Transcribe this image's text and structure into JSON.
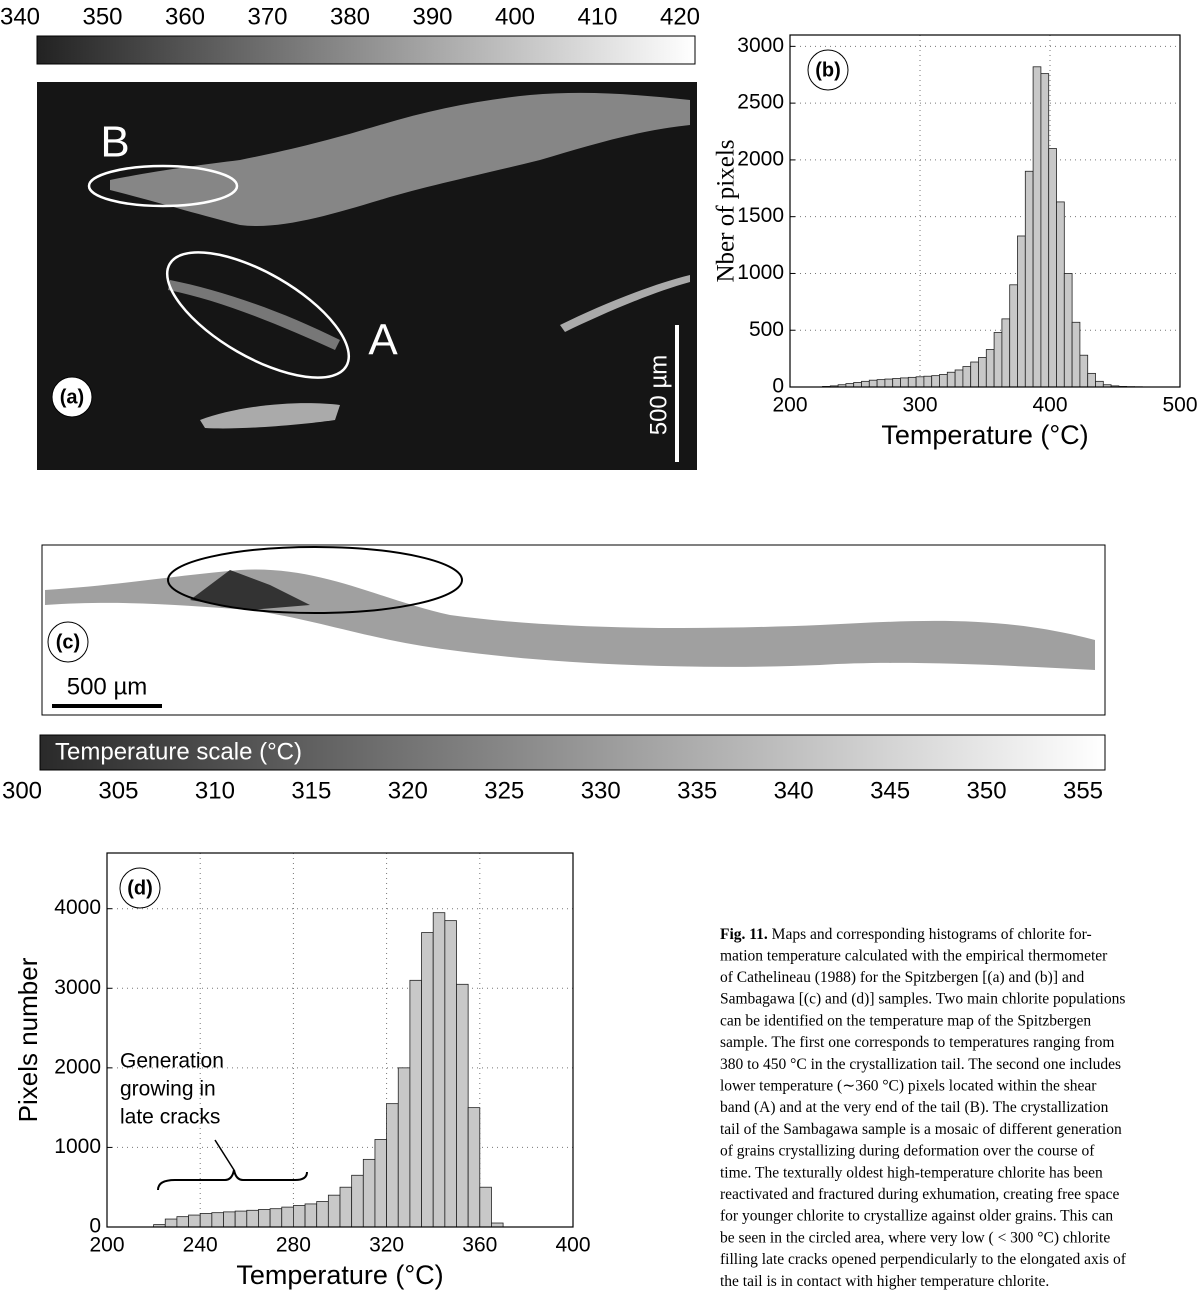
{
  "panel_a": {
    "colorbar": {
      "lim": [
        340,
        420
      ],
      "ticks": [
        340,
        350,
        360,
        370,
        380,
        390,
        400,
        410,
        420
      ]
    },
    "label": "(a)",
    "regions": [
      "B",
      "A"
    ],
    "scale_bar": "500 µm"
  },
  "chart_data": [
    {
      "type": "histogram",
      "panel_label": "(b)",
      "xlabel": "Temperature (°C)",
      "ylabel": "Nber of pixels",
      "bins": [
        225,
        231,
        237,
        243,
        249,
        255,
        261,
        267,
        273,
        279,
        285,
        291,
        297,
        303,
        309,
        315,
        321,
        327,
        333,
        339,
        345,
        351,
        357,
        363,
        369,
        375,
        381,
        387,
        393,
        399,
        405,
        411,
        417,
        423,
        429,
        435,
        441,
        447,
        453,
        459,
        465,
        471,
        477
      ],
      "values": [
        5,
        10,
        20,
        30,
        40,
        50,
        60,
        65,
        70,
        75,
        80,
        85,
        90,
        95,
        100,
        110,
        130,
        150,
        180,
        220,
        260,
        330,
        480,
        600,
        900,
        1330,
        1900,
        2820,
        2760,
        2100,
        1630,
        1000,
        570,
        280,
        120,
        50,
        20,
        10,
        5,
        3,
        2,
        1
      ],
      "color": "#c8c8c8",
      "xlim": [
        200,
        500
      ],
      "xticks": [
        200,
        300,
        400,
        500
      ],
      "ylim": [
        0,
        3100
      ],
      "yticks": [
        0,
        500,
        1000,
        1500,
        2000,
        2500,
        3000
      ],
      "grid": true
    },
    {
      "type": "histogram",
      "panel_label": "(d)",
      "xlabel": "Temperature (°C)",
      "ylabel": "Pixels number",
      "annotation": [
        "Generation",
        "growing in",
        "late cracks"
      ],
      "bins": [
        220,
        225,
        230,
        235,
        240,
        245,
        250,
        255,
        260,
        265,
        270,
        275,
        280,
        285,
        290,
        295,
        300,
        305,
        310,
        315,
        320,
        325,
        330,
        335,
        340,
        345,
        350,
        355,
        360,
        365,
        370
      ],
      "values": [
        30,
        100,
        130,
        150,
        170,
        180,
        190,
        200,
        210,
        220,
        230,
        250,
        270,
        290,
        320,
        400,
        500,
        650,
        850,
        1100,
        1550,
        2000,
        3100,
        3700,
        3950,
        3850,
        3050,
        1500,
        500,
        50
      ],
      "color": "#c8c8c8",
      "xlim": [
        200,
        400
      ],
      "xticks": [
        200,
        240,
        280,
        320,
        360,
        400
      ],
      "ylim": [
        0,
        4700
      ],
      "yticks": [
        0,
        1000,
        2000,
        3000,
        4000
      ],
      "grid": true
    }
  ],
  "panel_c": {
    "label": "(c)",
    "scale_bar": "500 µm",
    "colorbar": {
      "title": "Temperature scale (°C)",
      "lim": [
        300,
        355
      ],
      "ticks": [
        300,
        305,
        310,
        315,
        320,
        325,
        330,
        335,
        340,
        345,
        350,
        355
      ]
    }
  },
  "caption": {
    "label": "Fig. 11.",
    "lines": [
      " Maps and corresponding histograms of chlorite for-",
      "mation temperature calculated with the empirical thermometer",
      "of Cathelineau (1988) for the Spitzbergen [(a) and (b)] and",
      "Sambagawa [(c) and (d)] samples. Two main chlorite populations",
      "can be identified on the temperature map of the Spitzbergen",
      "sample. The first one corresponds to temperatures ranging from",
      "380 to 450 °C in the crystallization tail. The second one includes",
      "lower temperature (∼360 °C) pixels located within the shear",
      "band (A) and at the very end of the tail (B). The crystallization",
      "tail of the Sambagawa sample is a mosaic of different generation",
      "of grains crystallizing during deformation over the course of",
      "time. The texturally oldest high-temperature chlorite has been",
      "reactivated and fractured during exhumation, creating free space",
      "for younger chlorite to crystallize against older grains. This can",
      "be seen in the circled area, where very low ( < 300 °C) chlorite",
      "filling late cracks opened perpendicularly to the elongated axis of",
      "the tail is in contact with higher temperature chlorite."
    ]
  }
}
